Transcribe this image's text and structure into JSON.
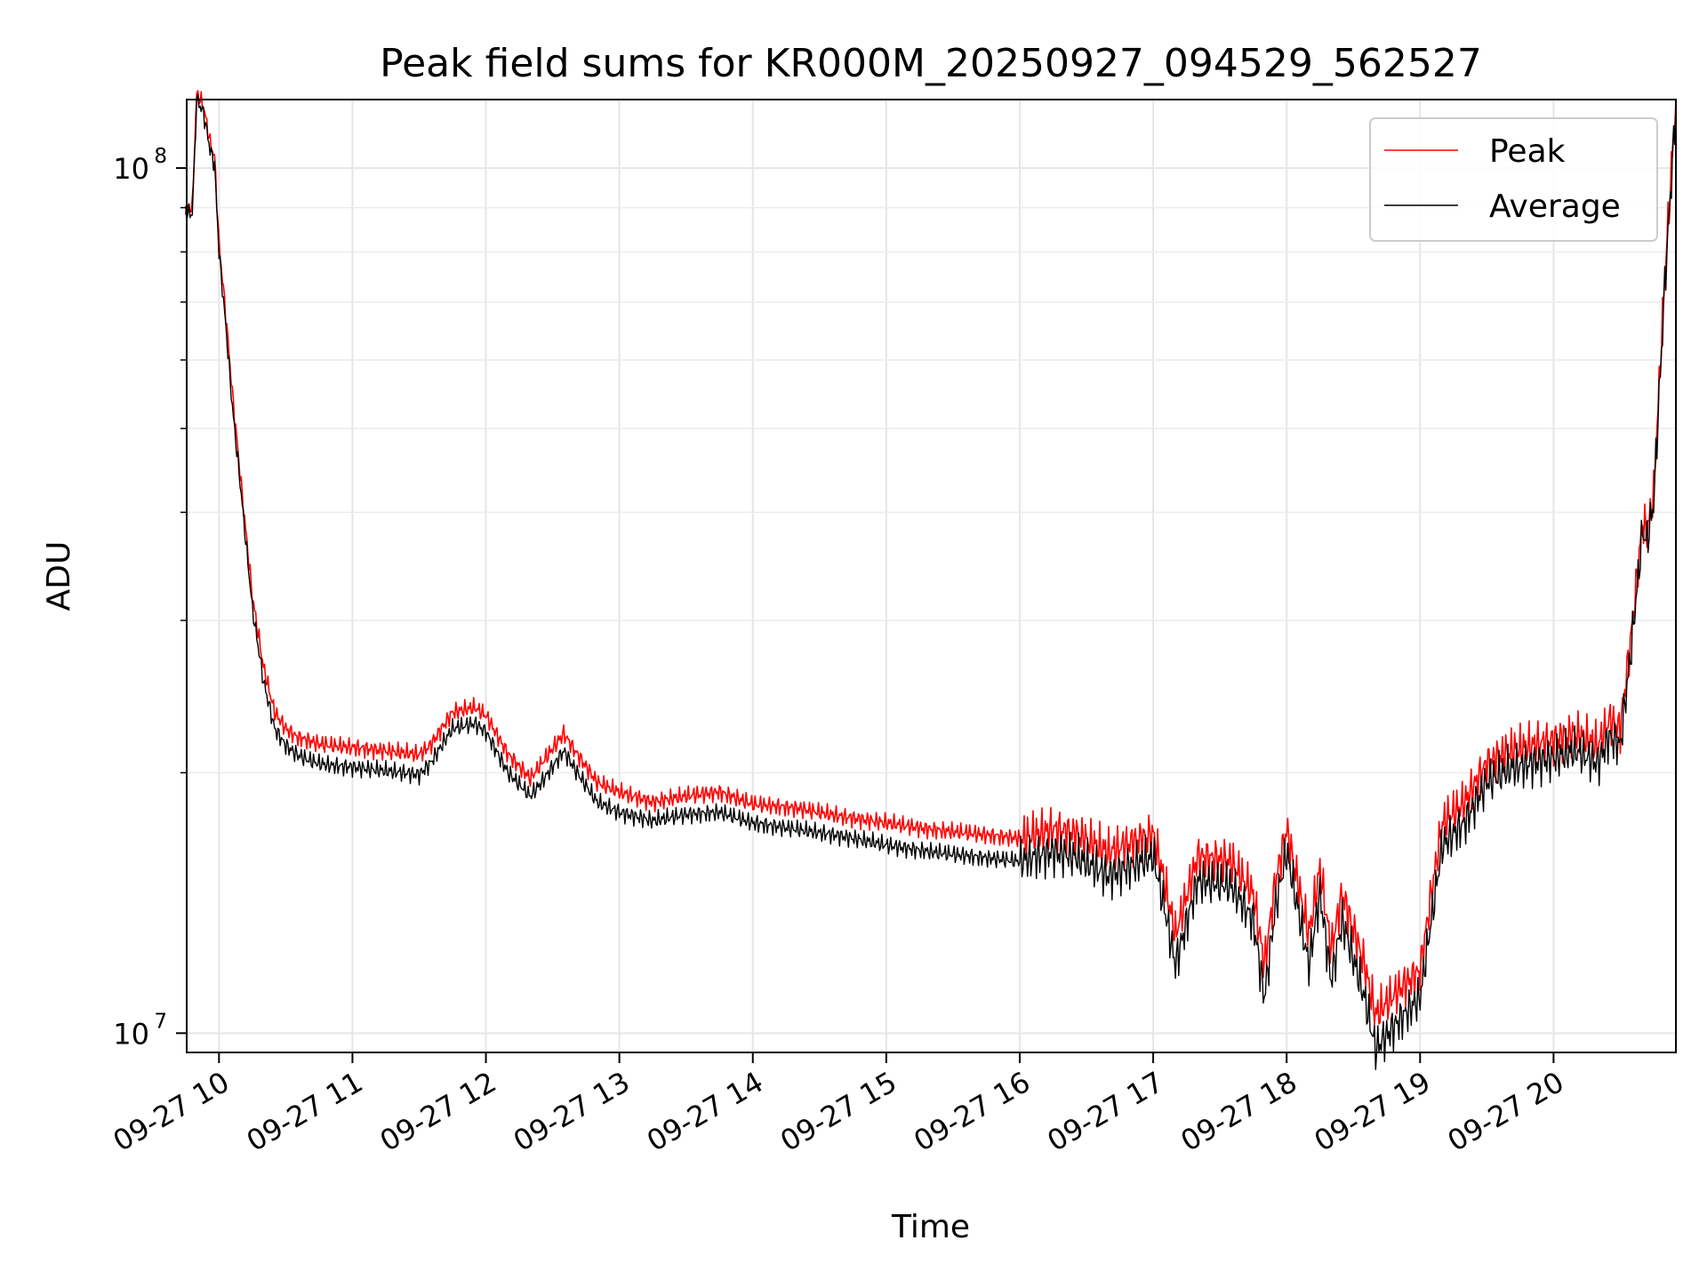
{
  "chart_data": {
    "type": "line",
    "title": "Peak field sums for KR000M_20250927_094529_562527",
    "xlabel": "Time",
    "ylabel": "ADU",
    "y_scale": "log",
    "grid": true,
    "legend_position": "top-right",
    "xlim": [
      "2025-09-27 09:45:29",
      "2025-09-27 20:55"
    ],
    "ylim": [
      9500000,
      120000000
    ],
    "x_ticks": [
      "09-27 10",
      "09-27 11",
      "09-27 12",
      "09-27 13",
      "09-27 14",
      "09-27 15",
      "09-27 16",
      "09-27 17",
      "09-27 18",
      "09-27 19",
      "09-27 20"
    ],
    "y_ticks": [
      {
        "value": 10000000,
        "base": "10",
        "exp": "7"
      },
      {
        "value": 100000000,
        "base": "10",
        "exp": "8"
      }
    ],
    "x": [
      "09:45",
      "09:48",
      "09:50",
      "09:53",
      "09:56",
      "09:58",
      "10:00",
      "10:03",
      "10:06",
      "10:10",
      "10:15",
      "10:20",
      "10:25",
      "10:30",
      "10:35",
      "10:40",
      "10:45",
      "10:50",
      "11:00",
      "11:15",
      "11:30",
      "11:35",
      "11:45",
      "11:55",
      "12:00",
      "12:10",
      "12:20",
      "12:25",
      "12:35",
      "12:40",
      "12:50",
      "13:00",
      "13:15",
      "13:30",
      "13:45",
      "14:00",
      "14:20",
      "14:40",
      "15:00",
      "15:20",
      "15:40",
      "16:00",
      "16:15",
      "16:25",
      "16:40",
      "17:00",
      "17:05",
      "17:10",
      "17:20",
      "17:35",
      "17:45",
      "17:50",
      "17:55",
      "18:00",
      "18:10",
      "18:15",
      "18:20",
      "18:25",
      "18:35",
      "18:40",
      "18:50",
      "19:00",
      "19:05",
      "19:10",
      "19:20",
      "19:30",
      "19:40",
      "19:50",
      "20:00",
      "20:10",
      "20:20",
      "20:25",
      "20:30",
      "20:35",
      "20:40",
      "20:42",
      "20:45",
      "20:50",
      "20:55"
    ],
    "series": [
      {
        "name": "Peak",
        "color": "#ff0000",
        "values": [
          90000000.0,
          90000000.0,
          122000000.0,
          118000000.0,
          107000000.0,
          103000000.0,
          82000000.0,
          68000000.0,
          55000000.0,
          43000000.0,
          32000000.0,
          26500000.0,
          23500000.0,
          22500000.0,
          22000000.0,
          21800000.0,
          21600000.0,
          21500000.0,
          21400000.0,
          21200000.0,
          21000000.0,
          21500000.0,
          23500000.0,
          23800000.0,
          23300000.0,
          21000000.0,
          19700000.0,
          20500000.0,
          22200000.0,
          21200000.0,
          19500000.0,
          19000000.0,
          18500000.0,
          18800000.0,
          19000000.0,
          18400000.0,
          18200000.0,
          17800000.0,
          17500000.0,
          17200000.0,
          17000000.0,
          16800000.0,
          17200000.0,
          17000000.0,
          16200000.0,
          17000000.0,
          15000000.0,
          13000000.0,
          16000000.0,
          15800000.0,
          14500000.0,
          12000000.0,
          15000000.0,
          17200000.0,
          13000000.0,
          15500000.0,
          12500000.0,
          14500000.0,
          12000000.0,
          10500000.0,
          11200000.0,
          11800000.0,
          14500000.0,
          17500000.0,
          18500000.0,
          20500000.0,
          21200000.0,
          21500000.0,
          21800000.0,
          22200000.0,
          21500000.0,
          23000000.0,
          22500000.0,
          29000000.0,
          39000000.0,
          38000000.0,
          42000000.0,
          75000000.0,
          120000000.0
        ]
      },
      {
        "name": "Average",
        "color": "#000000",
        "values": [
          89000000.0,
          88500000.0,
          120000000.0,
          116000000.0,
          105000000.0,
          101000000.0,
          80000000.0,
          66000000.0,
          53000000.0,
          42000000.0,
          31000000.0,
          25500000.0,
          22500000.0,
          21500000.0,
          21000000.0,
          20700000.0,
          20500000.0,
          20400000.0,
          20300000.0,
          20100000.0,
          19900000.0,
          20500000.0,
          22500000.0,
          22800000.0,
          22300000.0,
          20000000.0,
          18800000.0,
          19500000.0,
          21200000.0,
          20200000.0,
          18500000.0,
          18000000.0,
          17600000.0,
          17900000.0,
          18000000.0,
          17500000.0,
          17200000.0,
          16900000.0,
          16500000.0,
          16200000.0,
          16000000.0,
          15800000.0,
          16200000.0,
          16000000.0,
          15200000.0,
          16000000.0,
          14000000.0,
          12000000.0,
          15000000.0,
          14800000.0,
          13500000.0,
          11000000.0,
          14000000.0,
          16200000.0,
          12000000.0,
          14500000.0,
          11500000.0,
          13500000.0,
          11000000.0,
          9600000.0,
          10300000.0,
          11000000.0,
          13500000.0,
          16500000.0,
          17500000.0,
          19500000.0,
          20200000.0,
          20500000.0,
          20800000.0,
          21200000.0,
          20500000.0,
          22000000.0,
          21500000.0,
          28000000.0,
          38000000.0,
          37000000.0,
          41000000.0,
          73000000.0,
          118000000.0
        ]
      }
    ]
  }
}
